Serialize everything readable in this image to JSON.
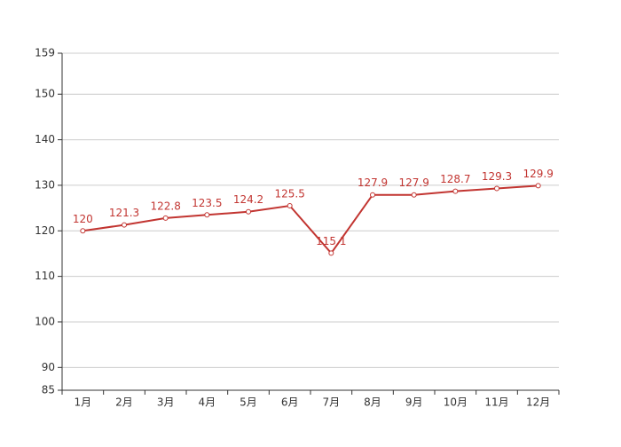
{
  "chart_data": {
    "type": "line",
    "categories": [
      "1月",
      "2月",
      "3月",
      "4月",
      "5月",
      "6月",
      "7月",
      "8月",
      "9月",
      "10月",
      "11月",
      "12月"
    ],
    "series": [
      {
        "color": "#c23531",
        "values": [
          120,
          121.3,
          122.8,
          123.5,
          124.2,
          125.5,
          115.1,
          127.9,
          127.9,
          128.7,
          129.3,
          129.9
        ]
      }
    ],
    "ylim": [
      85,
      159
    ],
    "yticks": [
      85,
      90,
      100,
      110,
      120,
      130,
      140,
      150,
      159
    ],
    "grid": true
  }
}
